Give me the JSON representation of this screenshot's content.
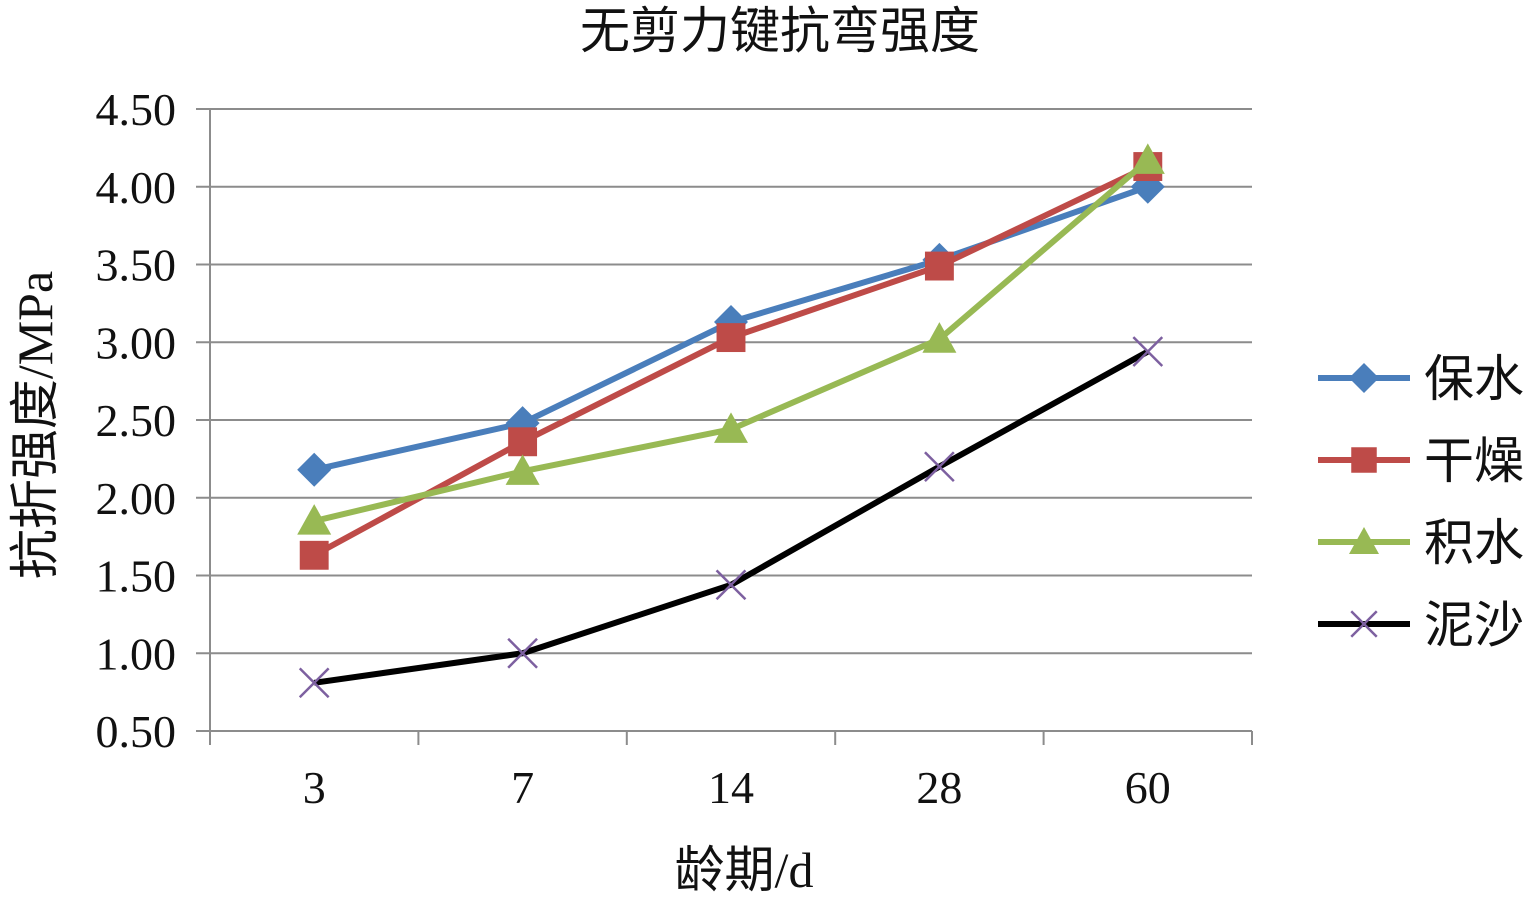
{
  "chart_data": {
    "type": "line",
    "title": "无剪力键抗弯强度",
    "xlabel": "龄期/d",
    "ylabel": "抗折强度/MPa",
    "categories": [
      "3",
      "7",
      "14",
      "28",
      "60"
    ],
    "ylim": [
      0.5,
      4.5
    ],
    "yticks": [
      "0.50",
      "1.00",
      "1.50",
      "2.00",
      "2.50",
      "3.00",
      "3.50",
      "4.00",
      "4.50"
    ],
    "grid": true,
    "legend_position": "right",
    "series": [
      {
        "name": "保水",
        "values": [
          2.18,
          2.48,
          3.13,
          3.53,
          4.0
        ],
        "color": "#4a7ebb",
        "marker": "diamond"
      },
      {
        "name": "干燥",
        "values": [
          1.63,
          2.36,
          3.03,
          3.49,
          4.13
        ],
        "color": "#be4b48",
        "marker": "square"
      },
      {
        "name": "积水",
        "values": [
          1.85,
          2.17,
          2.44,
          3.02,
          4.17
        ],
        "color": "#98b954",
        "marker": "triangle"
      },
      {
        "name": "泥沙",
        "values": [
          0.81,
          1.0,
          1.44,
          2.2,
          2.94
        ],
        "color": "#000000",
        "marker": "x",
        "marker_color": "#7d60a0"
      }
    ]
  }
}
